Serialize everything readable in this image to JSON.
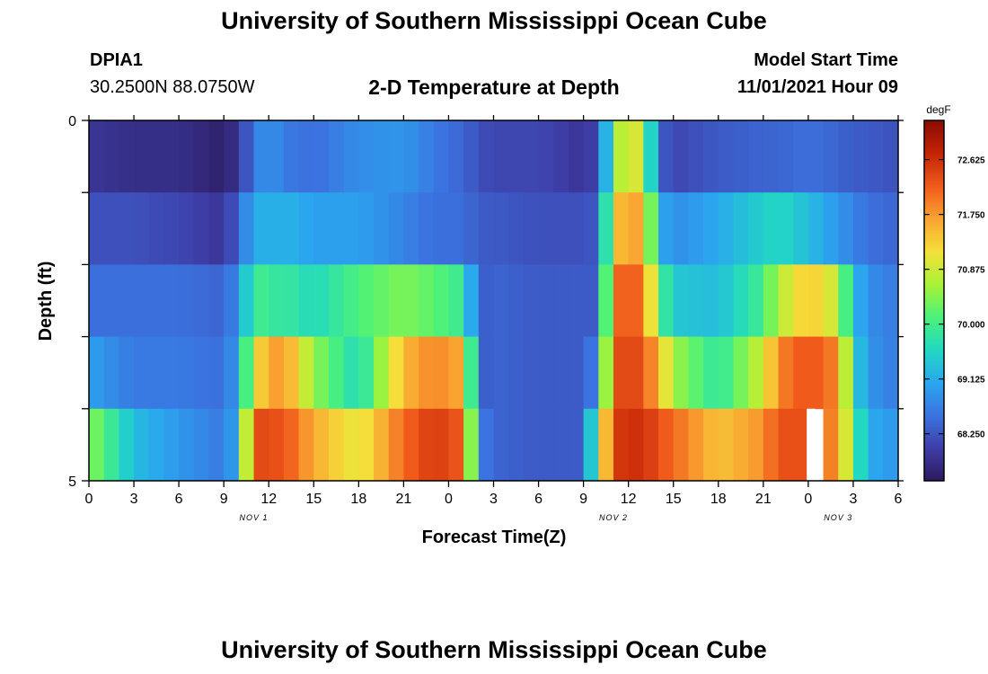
{
  "header": {
    "title": "University of Southern Mississippi Ocean Cube",
    "station_id": "DPIA1",
    "coordinates": "30.2500N  88.0750W",
    "subtitle": "2-D Temperature at Depth",
    "model_start_label": "Model Start Time",
    "model_start_value": "11/01/2021 Hour 09"
  },
  "footer": {
    "title": "University of Southern Mississippi Ocean Cube"
  },
  "colors": {
    "colormap": [
      "#2b1a5c",
      "#3f3ea8",
      "#3b74e0",
      "#2aa7ef",
      "#22d8c2",
      "#4cf27a",
      "#a9f236",
      "#f5e03a",
      "#f9a331",
      "#f05a1c",
      "#c22305",
      "#8a0c02"
    ],
    "missing": "#ffffff"
  },
  "chart_data": {
    "type": "heatmap",
    "xlabel": "Forecast Time(Z)",
    "ylabel": "Depth (ft)",
    "x_tick_labels": [
      "0",
      "3",
      "6",
      "9",
      "12",
      "15",
      "18",
      "21",
      "0",
      "3",
      "6",
      "9",
      "12",
      "15",
      "18",
      "21",
      "0",
      "3",
      "6"
    ],
    "date_labels": [
      {
        "label": "NOV 1",
        "at_hour": 11
      },
      {
        "label": "NOV 2",
        "at_hour": 35
      },
      {
        "label": "NOV 3",
        "at_hour": 50
      }
    ],
    "y_tick_labels": [
      "0",
      "5"
    ],
    "ylim": [
      0,
      5
    ],
    "xlim_hours": [
      0,
      54
    ],
    "colorbar": {
      "unit": "degF",
      "min": 67.5,
      "max": 73.25,
      "ticks": [
        "72.625",
        "71.750",
        "70.875",
        "70.000",
        "69.125",
        "68.250"
      ]
    },
    "depth_layers_ft": [
      0.5,
      1.5,
      2.5,
      3.5,
      4.5
    ],
    "time_keyframes": [
      {
        "hour": 0,
        "temps": [
          67.9,
          68.2,
          68.5,
          69.0,
          70.5
        ]
      },
      {
        "hour": 3,
        "temps": [
          67.8,
          68.2,
          68.5,
          68.6,
          69.3
        ]
      },
      {
        "hour": 6,
        "temps": [
          67.8,
          68.1,
          68.5,
          68.6,
          68.9
        ]
      },
      {
        "hour": 9,
        "temps": [
          67.6,
          67.9,
          68.4,
          68.5,
          68.6
        ]
      },
      {
        "hour": 10,
        "temps": [
          67.9,
          68.4,
          68.8,
          69.0,
          69.2
        ]
      },
      {
        "hour": 11,
        "temps": [
          68.6,
          69.2,
          70.1,
          71.1,
          72.4
        ]
      },
      {
        "hour": 12,
        "temps": [
          68.9,
          69.1,
          69.8,
          71.6,
          72.3
        ]
      },
      {
        "hour": 13,
        "temps": [
          68.6,
          69.2,
          69.9,
          71.8,
          72.3
        ]
      },
      {
        "hour": 15,
        "temps": [
          68.5,
          69.0,
          69.6,
          70.5,
          71.6
        ]
      },
      {
        "hour": 18,
        "temps": [
          68.8,
          69.0,
          70.1,
          69.6,
          71.0
        ]
      },
      {
        "hour": 21,
        "temps": [
          68.9,
          68.7,
          70.4,
          71.5,
          72.1
        ]
      },
      {
        "hour": 23,
        "temps": [
          68.6,
          68.5,
          70.2,
          71.9,
          72.5
        ]
      },
      {
        "hour": 25,
        "temps": [
          68.4,
          68.5,
          69.9,
          71.6,
          72.2
        ]
      },
      {
        "hour": 26,
        "temps": [
          68.2,
          68.3,
          68.3,
          68.3,
          68.7
        ]
      },
      {
        "hour": 27,
        "temps": [
          68.1,
          68.3,
          68.4,
          68.4,
          68.4
        ]
      },
      {
        "hour": 30,
        "temps": [
          68.1,
          68.2,
          68.3,
          68.3,
          68.3
        ]
      },
      {
        "hour": 33,
        "temps": [
          67.9,
          68.2,
          68.3,
          68.3,
          68.3
        ]
      },
      {
        "hour": 34,
        "temps": [
          68.1,
          68.3,
          68.3,
          68.8,
          70.5
        ]
      },
      {
        "hour": 35,
        "temps": [
          70.3,
          71.2,
          72.0,
          72.3,
          72.5
        ]
      },
      {
        "hour": 36,
        "temps": [
          71.2,
          71.8,
          72.3,
          72.4,
          72.6
        ]
      },
      {
        "hour": 37,
        "temps": [
          70.7,
          71.5,
          72.0,
          72.3,
          72.6
        ]
      },
      {
        "hour": 38,
        "temps": [
          68.4,
          69.2,
          70.2,
          71.5,
          72.3
        ]
      },
      {
        "hour": 39,
        "temps": [
          68.1,
          68.8,
          69.4,
          70.6,
          72.1
        ]
      },
      {
        "hour": 42,
        "temps": [
          68.3,
          69.1,
          69.3,
          69.8,
          71.4
        ]
      },
      {
        "hour": 45,
        "temps": [
          68.4,
          69.5,
          70.0,
          70.9,
          71.8
        ]
      },
      {
        "hour": 46,
        "temps": [
          68.4,
          69.6,
          70.7,
          71.9,
          72.3
        ]
      },
      {
        "hour": 48,
        "temps": [
          68.5,
          69.3,
          71.4,
          72.3,
          72.3
        ]
      },
      {
        "hour": 50,
        "temps": [
          68.4,
          68.9,
          70.8,
          71.9,
          71.8
        ]
      },
      {
        "hour": 51,
        "temps": [
          68.3,
          68.7,
          69.3,
          69.6,
          70.1
        ]
      },
      {
        "hour": 52,
        "temps": [
          68.3,
          68.5,
          68.8,
          68.9,
          69.1
        ]
      },
      {
        "hour": 54,
        "temps": [
          68.2,
          68.4,
          68.6,
          68.6,
          68.9
        ]
      }
    ],
    "missing_cells": [
      {
        "hour": 48,
        "depth_ft": 4.5
      }
    ]
  }
}
